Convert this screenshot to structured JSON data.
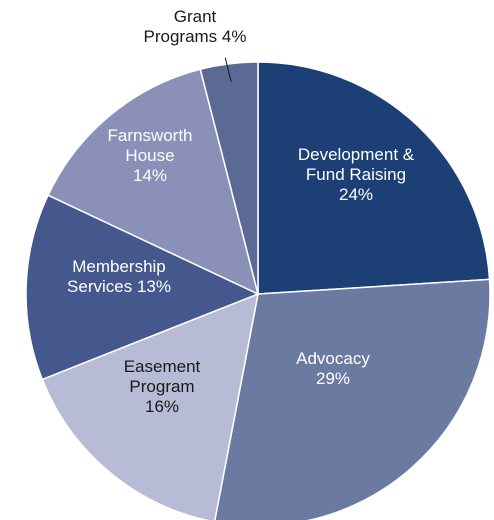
{
  "chart_data": {
    "type": "pie",
    "start_angle_deg": 0,
    "direction": "clockwise",
    "slices": [
      {
        "name": "Development & Fund Raising",
        "value": 24,
        "label_lines": [
          "Development &",
          "Fund Raising",
          "24%"
        ],
        "color": "#1c3f75",
        "label_color": "#ffffff"
      },
      {
        "name": "Advocacy",
        "value": 29,
        "label_lines": [
          "Advocacy",
          "29%"
        ],
        "color": "#6b7aa1",
        "label_color": "#ffffff"
      },
      {
        "name": "Easement Program",
        "value": 16,
        "label_lines": [
          "Easement",
          "Program",
          "16%"
        ],
        "color": "#b7bbd6",
        "label_color": "#1a1a1a"
      },
      {
        "name": "Membership Services",
        "value": 13,
        "label_lines": [
          "Membership",
          "Services 13%"
        ],
        "color": "#44588d",
        "label_color": "#ffffff"
      },
      {
        "name": "Farnsworth House",
        "value": 14,
        "label_lines": [
          "Farnsworth",
          "House",
          "14%"
        ],
        "color": "#8a90b7",
        "label_color": "#ffffff"
      },
      {
        "name": "Grant Programs",
        "value": 4,
        "label_lines": [
          "Grant",
          "Programs 4%"
        ],
        "color": "#5a6a95",
        "label_color": "#1a1a1a"
      }
    ]
  }
}
